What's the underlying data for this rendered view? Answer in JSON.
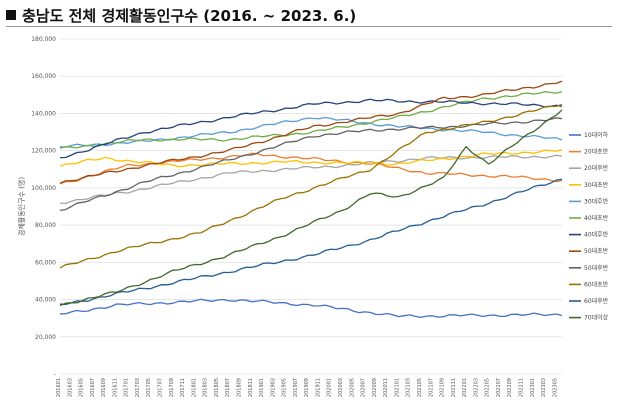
{
  "page": {
    "title": "충남도 전체 경제활동인구수 (2016. ~ 2023. 6.)"
  },
  "chart_data": {
    "type": "line",
    "title": "충남도 전체 경제활동인구수 (2016. ~ 2023. 6.)",
    "ylabel": "경제활동인구수 (명)",
    "xlabel": "",
    "ylim": [
      0,
      180000
    ],
    "yticks": [
      0,
      20000,
      40000,
      60000,
      80000,
      100000,
      120000,
      140000,
      160000,
      180000
    ],
    "ytick_labels": [
      "-",
      "20,000",
      "40,000",
      "60,000",
      "80,000",
      "100,000",
      "120,000",
      "140,000",
      "160,000",
      "180,000"
    ],
    "grid": true,
    "legend_position": "right",
    "x": [
      "201601",
      "201602",
      "201603",
      "201604",
      "201605",
      "201606",
      "201607",
      "201608",
      "201609",
      "201610",
      "201611",
      "201612",
      "201701",
      "201702",
      "201703",
      "201704",
      "201705",
      "201706",
      "201707",
      "201708",
      "201709",
      "201710",
      "201711",
      "201712",
      "201801",
      "201802",
      "201803",
      "201804",
      "201805",
      "201806",
      "201807",
      "201808",
      "201809",
      "201810",
      "201811",
      "201812",
      "201901",
      "201902",
      "201903",
      "201904",
      "201905",
      "201906",
      "201907",
      "201908",
      "201909",
      "201910",
      "201911",
      "201912",
      "202001",
      "202002",
      "202003",
      "202004",
      "202005",
      "202006",
      "202007",
      "202008",
      "202009",
      "202010",
      "202011",
      "202012",
      "202101",
      "202102",
      "202103",
      "202104",
      "202105",
      "202106",
      "202107",
      "202108",
      "202109",
      "202110",
      "202111",
      "202112",
      "202201",
      "202202",
      "202203",
      "202204",
      "202205",
      "202206",
      "202207",
      "202208",
      "202209",
      "202210",
      "202211",
      "202212",
      "202301",
      "202302",
      "202303",
      "202304",
      "202305",
      "202306"
    ],
    "x_tick_labels": [
      "201601",
      "201603",
      "201605",
      "201607",
      "201609",
      "201611",
      "201701",
      "201703",
      "201705",
      "201707",
      "201709",
      "201711",
      "201801",
      "201803",
      "201805",
      "201807",
      "201809",
      "201811",
      "201901",
      "201903",
      "201905",
      "201907",
      "201909",
      "201911",
      "202001",
      "202003",
      "202005",
      "202007",
      "202009",
      "202011",
      "202101",
      "202103",
      "202105",
      "202107",
      "202109",
      "202111",
      "202201",
      "202203",
      "202205",
      "202207",
      "202209",
      "202211",
      "202301",
      "202303",
      "202305"
    ],
    "series": [
      {
        "name": "10대이하",
        "color": "#4472c4",
        "anchors": [
          [
            0,
            32000
          ],
          [
            10,
            37000
          ],
          [
            30,
            40000
          ],
          [
            45,
            37000
          ],
          [
            60,
            31000
          ],
          [
            89,
            32000
          ]
        ]
      },
      {
        "name": "20대초반",
        "color": "#ed7d31",
        "anchors": [
          [
            0,
            102000
          ],
          [
            12,
            112000
          ],
          [
            35,
            118000
          ],
          [
            55,
            113000
          ],
          [
            65,
            108000
          ],
          [
            80,
            106000
          ],
          [
            89,
            104000
          ]
        ]
      },
      {
        "name": "20대후반",
        "color": "#a5a5a5",
        "anchors": [
          [
            0,
            92000
          ],
          [
            12,
            98000
          ],
          [
            30,
            108000
          ],
          [
            50,
            112000
          ],
          [
            65,
            116000
          ],
          [
            89,
            117000
          ]
        ]
      },
      {
        "name": "30대초반",
        "color": "#ffc000",
        "anchors": [
          [
            0,
            112000
          ],
          [
            8,
            116000
          ],
          [
            20,
            112000
          ],
          [
            40,
            114000
          ],
          [
            60,
            113000
          ],
          [
            75,
            118000
          ],
          [
            89,
            120000
          ]
        ]
      },
      {
        "name": "30대후반",
        "color": "#5b9bd5",
        "anchors": [
          [
            0,
            122000
          ],
          [
            15,
            125000
          ],
          [
            30,
            130000
          ],
          [
            45,
            138000
          ],
          [
            60,
            133000
          ],
          [
            75,
            130000
          ],
          [
            89,
            126000
          ]
        ]
      },
      {
        "name": "40대초반",
        "color": "#70ad47",
        "anchors": [
          [
            0,
            121000
          ],
          [
            15,
            126000
          ],
          [
            30,
            126000
          ],
          [
            45,
            130000
          ],
          [
            60,
            138000
          ],
          [
            75,
            148000
          ],
          [
            89,
            152000
          ]
        ]
      },
      {
        "name": "40대후반",
        "color": "#264478",
        "anchors": [
          [
            0,
            116000
          ],
          [
            15,
            130000
          ],
          [
            30,
            138000
          ],
          [
            45,
            145000
          ],
          [
            55,
            147000
          ],
          [
            70,
            146000
          ],
          [
            89,
            144000
          ]
        ]
      },
      {
        "name": "50대초반",
        "color": "#9e480e",
        "anchors": [
          [
            0,
            103000
          ],
          [
            15,
            112000
          ],
          [
            30,
            120000
          ],
          [
            45,
            133000
          ],
          [
            60,
            140000
          ],
          [
            68,
            148000
          ],
          [
            75,
            150000
          ],
          [
            89,
            157000
          ]
        ]
      },
      {
        "name": "50대후반",
        "color": "#636363",
        "anchors": [
          [
            0,
            88000
          ],
          [
            15,
            103000
          ],
          [
            30,
            115000
          ],
          [
            45,
            128000
          ],
          [
            55,
            131000
          ],
          [
            70,
            133000
          ],
          [
            89,
            137000
          ]
        ]
      },
      {
        "name": "60대초반",
        "color": "#997300",
        "anchors": [
          [
            0,
            57000
          ],
          [
            10,
            66000
          ],
          [
            25,
            76000
          ],
          [
            40,
            95000
          ],
          [
            55,
            110000
          ],
          [
            65,
            130000
          ],
          [
            75,
            135000
          ],
          [
            89,
            145000
          ]
        ]
      },
      {
        "name": "60대후반",
        "color": "#255e91",
        "anchors": [
          [
            0,
            37000
          ],
          [
            15,
            46000
          ],
          [
            30,
            55000
          ],
          [
            45,
            64000
          ],
          [
            55,
            72000
          ],
          [
            65,
            82000
          ],
          [
            75,
            91000
          ],
          [
            89,
            105000
          ]
        ]
      },
      {
        "name": "70대이상",
        "color": "#43682b",
        "anchors": [
          [
            0,
            37000
          ],
          [
            10,
            44000
          ],
          [
            20,
            55000
          ],
          [
            30,
            64000
          ],
          [
            40,
            75000
          ],
          [
            50,
            88000
          ],
          [
            55,
            97000
          ],
          [
            60,
            95000
          ],
          [
            68,
            105000
          ],
          [
            72,
            122000
          ],
          [
            76,
            113000
          ],
          [
            80,
            122000
          ],
          [
            89,
            142000
          ]
        ]
      }
    ]
  }
}
